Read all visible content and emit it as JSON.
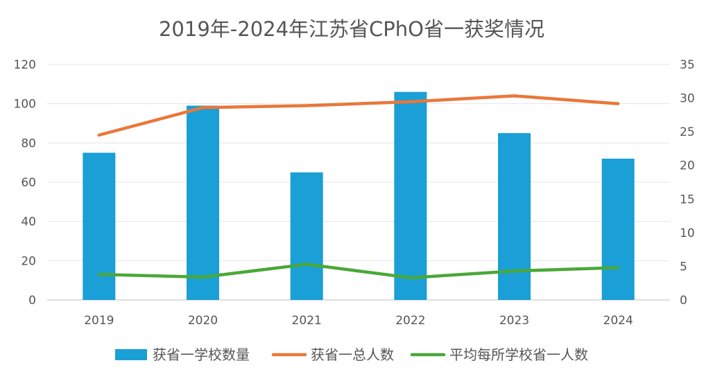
{
  "chart_data": {
    "type": "bar",
    "title": "2019年-2024年江苏省CPhO省一获奖情况",
    "categories": [
      "2019",
      "2020",
      "2021",
      "2022",
      "2023",
      "2024"
    ],
    "left_axis": {
      "ylim": [
        0,
        120
      ],
      "ticks": [
        "0",
        "20",
        "40",
        "60",
        "80",
        "100",
        "120"
      ]
    },
    "right_axis": {
      "ylim": [
        0,
        35
      ],
      "ticks": [
        "0",
        "5",
        "10",
        "15",
        "20",
        "25",
        "30",
        "35"
      ]
    },
    "grid": true,
    "legend_position": "bottom",
    "series": [
      {
        "name": "获省一学校数量",
        "type": "bar",
        "axis": "left",
        "color": "#1a9fd6",
        "values": [
          75,
          99,
          65,
          106,
          85,
          72
        ]
      },
      {
        "name": "获省一总人数",
        "type": "line",
        "axis": "left",
        "color": "#e9773a",
        "values": [
          84,
          98,
          99,
          101,
          104,
          100
        ]
      },
      {
        "name": "平均每所学校省一人数",
        "type": "line",
        "axis": "right",
        "color": "#4aa838",
        "values": [
          3.8,
          3.4,
          5.3,
          3.3,
          4.3,
          4.8
        ]
      }
    ]
  }
}
